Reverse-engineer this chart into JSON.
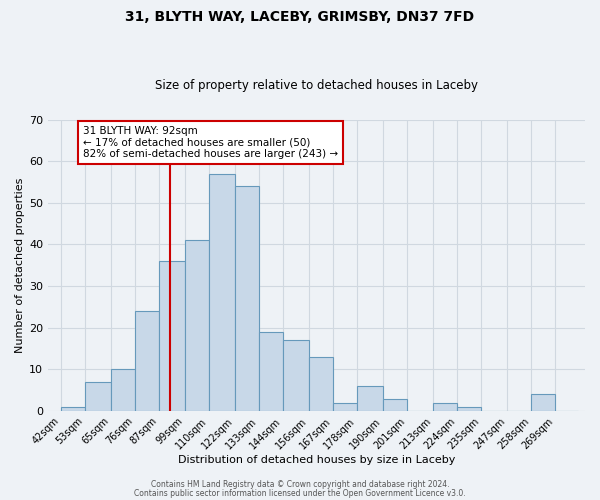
{
  "title1": "31, BLYTH WAY, LACEBY, GRIMSBY, DN37 7FD",
  "title2": "Size of property relative to detached houses in Laceby",
  "xlabel": "Distribution of detached houses by size in Laceby",
  "ylabel": "Number of detached properties",
  "bar_labels": [
    "42sqm",
    "53sqm",
    "65sqm",
    "76sqm",
    "87sqm",
    "99sqm",
    "110sqm",
    "122sqm",
    "133sqm",
    "144sqm",
    "156sqm",
    "167sqm",
    "178sqm",
    "190sqm",
    "201sqm",
    "213sqm",
    "224sqm",
    "235sqm",
    "247sqm",
    "258sqm",
    "269sqm"
  ],
  "bar_values": [
    1,
    7,
    10,
    24,
    36,
    41,
    57,
    54,
    19,
    17,
    13,
    2,
    6,
    3,
    0,
    2,
    1,
    0,
    0,
    4,
    0
  ],
  "bar_left_edges": [
    42,
    53,
    65,
    76,
    87,
    99,
    110,
    122,
    133,
    144,
    156,
    167,
    178,
    190,
    201,
    213,
    224,
    235,
    247,
    258,
    269
  ],
  "bar_widths": [
    11,
    12,
    11,
    11,
    12,
    11,
    12,
    11,
    11,
    12,
    11,
    11,
    12,
    11,
    12,
    11,
    11,
    12,
    11,
    11,
    11
  ],
  "bar_color": "#c8d8e8",
  "bar_edge_color": "#6699bb",
  "vline_x": 92,
  "vline_color": "#cc0000",
  "annotation_line1": "31 BLYTH WAY: 92sqm",
  "annotation_line2": "← 17% of detached houses are smaller (50)",
  "annotation_line3": "82% of semi-detached houses are larger (243) →",
  "annotation_box_color": "#cc0000",
  "annotation_box_fill": "#ffffff",
  "ylim": [
    0,
    70
  ],
  "yticks": [
    0,
    10,
    20,
    30,
    40,
    50,
    60,
    70
  ],
  "xlim_min": 36,
  "xlim_max": 283,
  "grid_color": "#d0d8e0",
  "background_color": "#eef2f6",
  "footer1": "Contains HM Land Registry data © Crown copyright and database right 2024.",
  "footer2": "Contains public sector information licensed under the Open Government Licence v3.0."
}
